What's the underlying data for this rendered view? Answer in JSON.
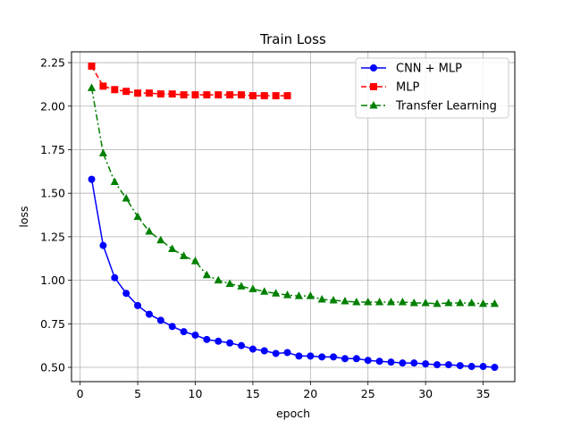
{
  "chart_data": {
    "type": "line",
    "title": "Train Loss",
    "xlabel": "epoch",
    "ylabel": "loss",
    "xlim": [
      -0.75,
      37.75
    ],
    "ylim": [
      0.418,
      2.312
    ],
    "xticks": [
      0,
      5,
      10,
      15,
      20,
      25,
      30,
      35
    ],
    "yticks": [
      0.5,
      0.75,
      1.0,
      1.25,
      1.5,
      1.75,
      2.0,
      2.25
    ],
    "ytick_labels": [
      "0.50",
      "0.75",
      "1.00",
      "1.25",
      "1.50",
      "1.75",
      "2.00",
      "2.25"
    ],
    "grid": true,
    "legend_position": "top-right",
    "series": [
      {
        "name": "CNN + MLP",
        "color": "#0000ff",
        "marker": "circle",
        "linestyle": "solid",
        "x": [
          1,
          2,
          3,
          4,
          5,
          6,
          7,
          8,
          9,
          10,
          11,
          12,
          13,
          14,
          15,
          16,
          17,
          18,
          19,
          20,
          21,
          22,
          23,
          24,
          25,
          26,
          27,
          28,
          29,
          30,
          31,
          32,
          33,
          34,
          35,
          36
        ],
        "y": [
          1.58,
          1.2,
          1.015,
          0.925,
          0.855,
          0.805,
          0.77,
          0.735,
          0.705,
          0.685,
          0.66,
          0.65,
          0.64,
          0.625,
          0.605,
          0.595,
          0.58,
          0.585,
          0.565,
          0.565,
          0.56,
          0.56,
          0.55,
          0.55,
          0.54,
          0.535,
          0.53,
          0.525,
          0.525,
          0.52,
          0.515,
          0.515,
          0.51,
          0.505,
          0.505,
          0.5
        ]
      },
      {
        "name": "MLP",
        "color": "#ff0000",
        "marker": "square",
        "linestyle": "dashed",
        "x": [
          1,
          2,
          3,
          4,
          5,
          6,
          7,
          8,
          9,
          10,
          11,
          12,
          13,
          14,
          15,
          16,
          17,
          18
        ],
        "y": [
          2.23,
          2.115,
          2.095,
          2.085,
          2.075,
          2.075,
          2.07,
          2.07,
          2.065,
          2.065,
          2.065,
          2.065,
          2.065,
          2.065,
          2.06,
          2.06,
          2.06,
          2.06
        ]
      },
      {
        "name": "Transfer Learning",
        "color": "#008000",
        "marker": "triangle",
        "linestyle": "dashdot",
        "x": [
          1,
          2,
          3,
          4,
          5,
          6,
          7,
          8,
          9,
          10,
          11,
          12,
          13,
          14,
          15,
          16,
          17,
          18,
          19,
          20,
          21,
          22,
          23,
          24,
          25,
          26,
          27,
          28,
          29,
          30,
          31,
          32,
          33,
          34,
          35,
          36
        ],
        "y": [
          2.105,
          1.73,
          1.565,
          1.47,
          1.365,
          1.28,
          1.23,
          1.18,
          1.14,
          1.11,
          1.03,
          1.0,
          0.98,
          0.965,
          0.95,
          0.935,
          0.925,
          0.915,
          0.91,
          0.91,
          0.89,
          0.885,
          0.88,
          0.875,
          0.875,
          0.875,
          0.875,
          0.875,
          0.87,
          0.87,
          0.865,
          0.87,
          0.87,
          0.87,
          0.865,
          0.865
        ]
      }
    ]
  }
}
